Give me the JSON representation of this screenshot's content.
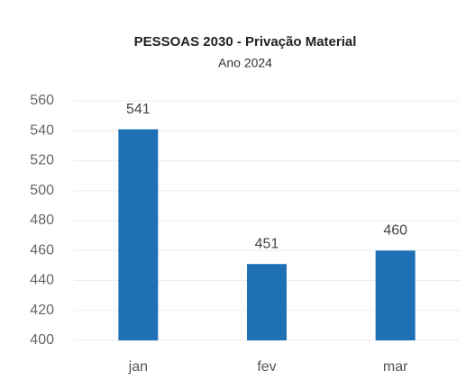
{
  "chart_data": {
    "type": "bar",
    "title": "PESSOAS 2030 - Privação Material",
    "subtitle": "Ano 2024",
    "categories": [
      "jan",
      "fev",
      "mar"
    ],
    "values": [
      541,
      451,
      460
    ],
    "color": "#1f70b5",
    "ylim": [
      400,
      560
    ],
    "yticks": [
      400,
      420,
      440,
      460,
      480,
      500,
      520,
      540,
      560
    ],
    "grid": true,
    "data_labels": true
  }
}
